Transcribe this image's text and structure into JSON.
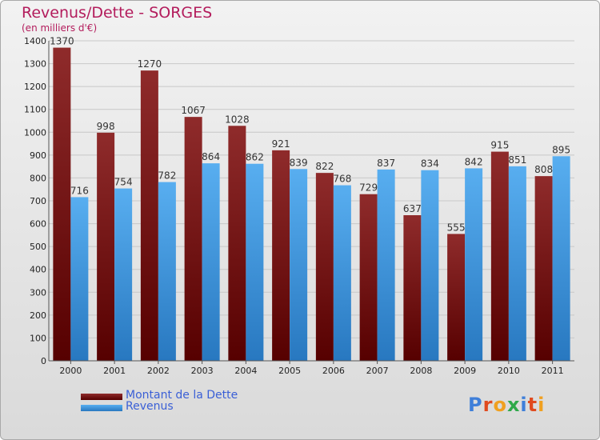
{
  "chart_data": {
    "type": "bar",
    "title": "Revenus/Dette - SORGES",
    "subtitle": "(en milliers d'€)",
    "categories": [
      "2000",
      "2001",
      "2002",
      "2003",
      "2004",
      "2005",
      "2006",
      "2007",
      "2008",
      "2009",
      "2010",
      "2011"
    ],
    "series": [
      {
        "name": "Montant de la Dette",
        "color": "#7d1f1f",
        "values": [
          1370,
          998,
          1270,
          1067,
          1028,
          921,
          822,
          729,
          637,
          555,
          915,
          808
        ]
      },
      {
        "name": "Revenus",
        "color": "#4a9fe0",
        "values": [
          716,
          754,
          782,
          864,
          862,
          839,
          768,
          837,
          834,
          842,
          851,
          895
        ]
      }
    ],
    "ylim": [
      0,
      1400
    ],
    "yticks": [
      0,
      100,
      200,
      300,
      400,
      500,
      600,
      700,
      800,
      900,
      1000,
      1100,
      1200,
      1300,
      1400
    ],
    "grid": true,
    "legend_position": "bottom-left"
  },
  "logo_text": "Proxiti"
}
